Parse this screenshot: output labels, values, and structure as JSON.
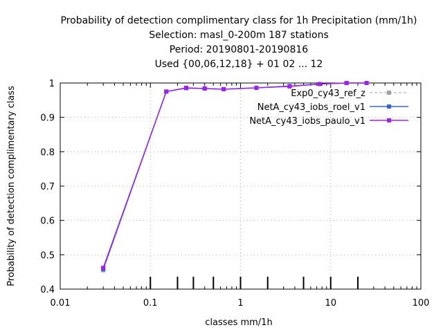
{
  "chart_data": {
    "type": "line",
    "title_lines": [
      "Probability of detection complimentary class  for 1h Precipitation (mm/1h)",
      "Selection: masl_0-200m    187 stations",
      "Period: 20190801-20190816",
      "Used {00,06,12,18} + 01 02 ... 12"
    ],
    "xlabel": "classes mm/1h",
    "ylabel": "Probability of detection complimentary class",
    "xscale": "log",
    "xlim": [
      0.01,
      100
    ],
    "ylim": [
      0.4,
      1.0
    ],
    "xticks": [
      0.01,
      0.1,
      1,
      10,
      100
    ],
    "xtick_labels": [
      "0.01",
      "0.1",
      "1",
      "10",
      "100"
    ],
    "yticks": [
      0.4,
      0.5,
      0.6,
      0.7,
      0.8,
      0.9,
      1.0
    ],
    "ytick_labels": [
      "0.4",
      "0.5",
      "0.6",
      "0.7",
      "0.8",
      "0.9",
      "1"
    ],
    "grid": true,
    "legend_position": "top-right",
    "class_markers": [
      0.1,
      0.2,
      0.3,
      0.5,
      1,
      2,
      5,
      10,
      20
    ],
    "x": [
      0.03,
      0.15,
      0.25,
      0.4,
      0.65,
      1.5,
      3.5,
      7.5,
      15,
      25
    ],
    "series": [
      {
        "name": "Exp0_cy43_ref_z",
        "color": "#a0a0a0",
        "dash": true,
        "values": [
          0.455,
          0.975,
          0.985,
          0.985,
          0.982,
          0.986,
          0.991,
          0.997,
          1.0,
          1.0
        ]
      },
      {
        "name": "NetA_cy43_iobs_roel_v1",
        "color": "#3266d8",
        "dash": false,
        "values": [
          0.458,
          0.975,
          0.985,
          0.984,
          0.982,
          0.986,
          0.991,
          0.997,
          1.0,
          1.0
        ]
      },
      {
        "name": "NetA_cy43_iobs_paulo_v1",
        "color": "#a020f0",
        "dash": false,
        "values": [
          0.462,
          0.975,
          0.986,
          0.984,
          0.982,
          0.986,
          0.99,
          0.997,
          1.0,
          1.0
        ]
      }
    ]
  }
}
